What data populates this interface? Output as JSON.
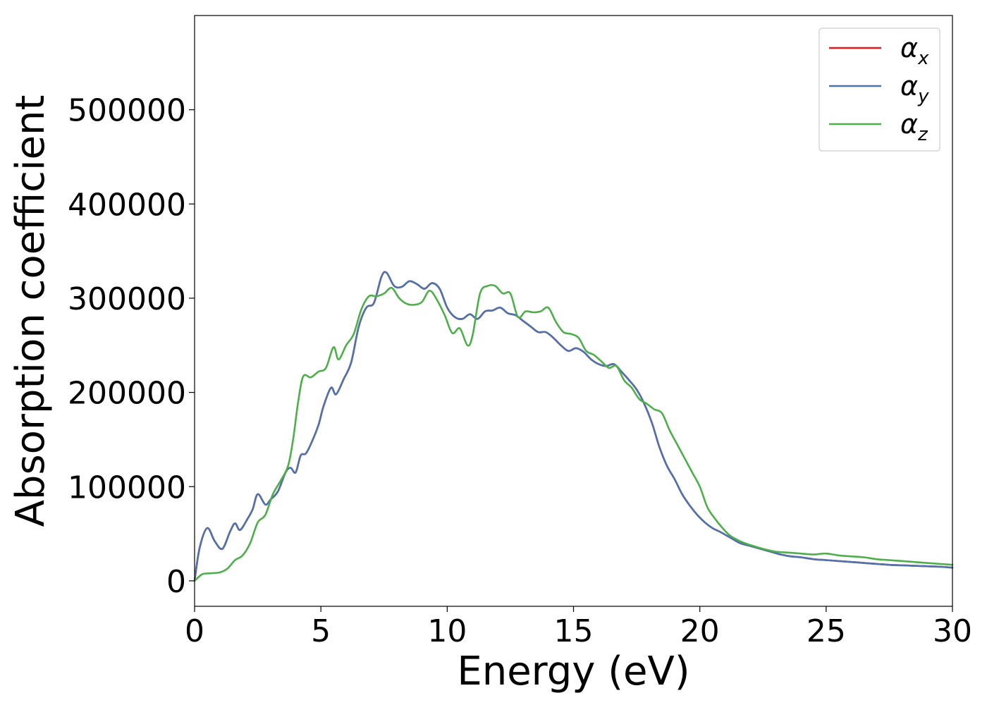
{
  "chart_data": {
    "type": "line",
    "title": "",
    "xlabel": "Energy (eV)",
    "ylabel": "Absorption coefficient",
    "xlim": [
      0,
      30
    ],
    "ylim": [
      -27000,
      600000
    ],
    "xticks": [
      0,
      5,
      10,
      15,
      20,
      25,
      30
    ],
    "yticks": [
      0,
      100000,
      200000,
      300000,
      400000,
      500000
    ],
    "grid": false,
    "legend_position": "top-right",
    "series": [
      {
        "name": "α_x",
        "legend_base": "α",
        "legend_sub": "x",
        "color": "#e41a1c",
        "x": [
          0,
          0.2,
          0.5,
          0.8,
          1.1,
          1.4,
          1.6,
          1.8,
          2.1,
          2.3,
          2.5,
          2.8,
          3.0,
          3.3,
          3.6,
          3.8,
          4.0,
          4.2,
          4.4,
          4.6,
          4.9,
          5.1,
          5.4,
          5.6,
          5.9,
          6.2,
          6.5,
          6.8,
          7.1,
          7.4,
          7.6,
          7.9,
          8.2,
          8.5,
          8.8,
          9.1,
          9.4,
          9.7,
          10.0,
          10.3,
          10.6,
          10.9,
          11.2,
          11.5,
          11.8,
          12.1,
          12.4,
          12.7,
          13.0,
          13.3,
          13.6,
          13.9,
          14.2,
          14.5,
          14.8,
          15.1,
          15.4,
          15.7,
          16.0,
          16.3,
          16.6,
          16.9,
          17.2,
          17.5,
          17.8,
          18.1,
          18.4,
          18.7,
          19.0,
          19.3,
          19.6,
          19.9,
          20.2,
          20.5,
          20.8,
          21.2,
          21.6,
          22.0,
          22.4,
          22.8,
          23.2,
          23.6,
          24.0,
          24.5,
          25.0,
          25.5,
          26.0,
          26.5,
          27.0,
          27.5,
          28.0,
          28.5,
          29.0,
          29.5,
          30.0
        ],
        "y": [
          0,
          35000,
          56000,
          42000,
          34000,
          52000,
          61000,
          54000,
          66000,
          76000,
          92000,
          81000,
          86000,
          95000,
          115000,
          120000,
          115000,
          133000,
          135000,
          145000,
          165000,
          185000,
          205000,
          198000,
          214000,
          232000,
          270000,
          290000,
          295000,
          323000,
          327000,
          313000,
          312000,
          318000,
          315000,
          310000,
          316000,
          310000,
          290000,
          280000,
          278000,
          283000,
          278000,
          286000,
          287000,
          290000,
          284000,
          282000,
          276000,
          270000,
          264000,
          264000,
          258000,
          250000,
          244000,
          247000,
          243000,
          235000,
          230000,
          228000,
          230000,
          222000,
          213000,
          203000,
          188000,
          168000,
          142000,
          122000,
          108000,
          92000,
          80000,
          70000,
          62000,
          56000,
          52000,
          46000,
          40000,
          37000,
          34000,
          31000,
          28000,
          26000,
          25000,
          23000,
          22000,
          21000,
          20000,
          19000,
          18000,
          17000,
          16500,
          16000,
          15500,
          15000,
          14000
        ]
      },
      {
        "name": "α_y",
        "legend_base": "α",
        "legend_sub": "y",
        "color": "#4c72b0",
        "x": [
          0,
          0.2,
          0.5,
          0.8,
          1.1,
          1.4,
          1.6,
          1.8,
          2.1,
          2.3,
          2.5,
          2.8,
          3.0,
          3.3,
          3.6,
          3.8,
          4.0,
          4.2,
          4.4,
          4.6,
          4.9,
          5.1,
          5.4,
          5.6,
          5.9,
          6.2,
          6.5,
          6.8,
          7.1,
          7.4,
          7.6,
          7.9,
          8.2,
          8.5,
          8.8,
          9.1,
          9.4,
          9.7,
          10.0,
          10.3,
          10.6,
          10.9,
          11.2,
          11.5,
          11.8,
          12.1,
          12.4,
          12.7,
          13.0,
          13.3,
          13.6,
          13.9,
          14.2,
          14.5,
          14.8,
          15.1,
          15.4,
          15.7,
          16.0,
          16.3,
          16.6,
          16.9,
          17.2,
          17.5,
          17.8,
          18.1,
          18.4,
          18.7,
          19.0,
          19.3,
          19.6,
          19.9,
          20.2,
          20.5,
          20.8,
          21.2,
          21.6,
          22.0,
          22.4,
          22.8,
          23.2,
          23.6,
          24.0,
          24.5,
          25.0,
          25.5,
          26.0,
          26.5,
          27.0,
          27.5,
          28.0,
          28.5,
          29.0,
          29.5,
          30.0
        ],
        "y": [
          0,
          35000,
          56000,
          42000,
          34000,
          52000,
          61000,
          54000,
          66000,
          76000,
          92000,
          81000,
          86000,
          95000,
          115000,
          120000,
          115000,
          133000,
          135000,
          145000,
          165000,
          185000,
          205000,
          198000,
          214000,
          232000,
          270000,
          290000,
          295000,
          323000,
          327000,
          313000,
          312000,
          318000,
          315000,
          310000,
          316000,
          310000,
          290000,
          280000,
          278000,
          283000,
          278000,
          286000,
          287000,
          290000,
          284000,
          282000,
          276000,
          270000,
          264000,
          264000,
          258000,
          250000,
          244000,
          247000,
          243000,
          235000,
          230000,
          228000,
          230000,
          222000,
          213000,
          203000,
          188000,
          168000,
          142000,
          122000,
          108000,
          92000,
          80000,
          70000,
          62000,
          56000,
          52000,
          46000,
          40000,
          37000,
          34000,
          31000,
          28000,
          26000,
          25000,
          23000,
          22000,
          21000,
          20000,
          19000,
          18000,
          17000,
          16500,
          16000,
          15500,
          15000,
          14000
        ]
      },
      {
        "name": "α_z",
        "legend_base": "α",
        "legend_sub": "z",
        "color": "#4daf4a",
        "x": [
          0,
          0.3,
          0.6,
          1.0,
          1.3,
          1.6,
          1.9,
          2.2,
          2.5,
          2.8,
          3.1,
          3.4,
          3.7,
          3.9,
          4.1,
          4.3,
          4.6,
          4.9,
          5.2,
          5.5,
          5.7,
          6.0,
          6.3,
          6.6,
          6.9,
          7.2,
          7.5,
          7.8,
          8.1,
          8.4,
          8.7,
          9.0,
          9.3,
          9.6,
          9.9,
          10.2,
          10.5,
          10.8,
          11.0,
          11.3,
          11.6,
          11.9,
          12.2,
          12.5,
          12.8,
          13.1,
          13.4,
          13.7,
          14.0,
          14.3,
          14.6,
          14.9,
          15.2,
          15.5,
          15.8,
          16.1,
          16.4,
          16.7,
          17.0,
          17.3,
          17.6,
          17.9,
          18.2,
          18.5,
          18.8,
          19.1,
          19.4,
          19.7,
          20.0,
          20.3,
          20.6,
          20.9,
          21.2,
          21.6,
          22.0,
          22.5,
          23.0,
          23.5,
          24.0,
          24.5,
          25.0,
          25.5,
          26.0,
          26.5,
          27.0,
          27.5,
          28.0,
          28.5,
          29.0,
          29.5,
          30.0
        ],
        "y": [
          0,
          7000,
          8000,
          9000,
          13000,
          22000,
          27000,
          40000,
          62000,
          70000,
          92000,
          106000,
          122000,
          150000,
          190000,
          217000,
          216000,
          222000,
          226000,
          248000,
          235000,
          250000,
          262000,
          288000,
          302000,
          302000,
          305000,
          311000,
          300000,
          294000,
          293000,
          296000,
          308000,
          298000,
          282000,
          263000,
          268000,
          250000,
          260000,
          305000,
          313000,
          313000,
          305000,
          305000,
          280000,
          286000,
          285000,
          286000,
          290000,
          275000,
          264000,
          262000,
          258000,
          244000,
          240000,
          233000,
          226000,
          228000,
          213000,
          205000,
          193000,
          188000,
          182000,
          178000,
          160000,
          145000,
          130000,
          115000,
          100000,
          78000,
          66000,
          56000,
          48000,
          42000,
          38000,
          34000,
          31000,
          30000,
          29000,
          28000,
          29000,
          27000,
          26000,
          25000,
          23000,
          22000,
          21000,
          20000,
          19000,
          18000,
          17000
        ]
      }
    ]
  }
}
